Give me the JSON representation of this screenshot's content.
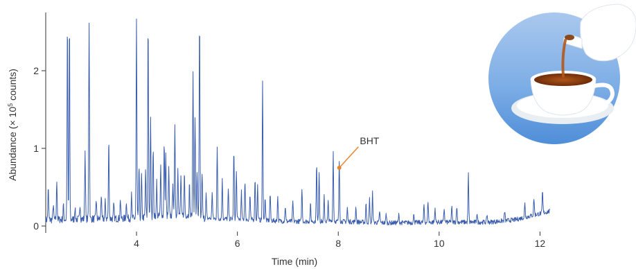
{
  "chart_data": {
    "type": "line",
    "xlabel": "Time (min)",
    "ylabel_prefix": "Abundance (× 10",
    "ylabel_exponent": "5",
    "ylabel_suffix": " counts)",
    "xlim": [
      2.2,
      12.2
    ],
    "ylim": [
      0,
      2.55
    ],
    "x_ticks": [
      4,
      6,
      8,
      10,
      12
    ],
    "y_ticks": [
      0,
      1,
      2
    ],
    "grid": false,
    "series_color": "#3a5dae",
    "baseline": [
      [
        2.2,
        0.08
      ],
      [
        3.0,
        0.09
      ],
      [
        4.0,
        0.1
      ],
      [
        4.5,
        0.13
      ],
      [
        5.0,
        0.14
      ],
      [
        5.3,
        0.1
      ],
      [
        6.0,
        0.09
      ],
      [
        7.0,
        0.06
      ],
      [
        8.0,
        0.06
      ],
      [
        9.0,
        0.04
      ],
      [
        10.0,
        0.05
      ],
      [
        11.0,
        0.05
      ],
      [
        11.5,
        0.08
      ],
      [
        12.0,
        0.16
      ],
      [
        12.2,
        0.19
      ]
    ],
    "peaks": [
      [
        2.25,
        0.4
      ],
      [
        2.35,
        0.2
      ],
      [
        2.42,
        0.5
      ],
      [
        2.55,
        0.18
      ],
      [
        2.63,
        2.55
      ],
      [
        2.67,
        2.55
      ],
      [
        2.78,
        0.15
      ],
      [
        2.88,
        0.2
      ],
      [
        2.98,
        0.88
      ],
      [
        3.06,
        2.55
      ],
      [
        3.2,
        0.25
      ],
      [
        3.3,
        0.3
      ],
      [
        3.38,
        0.22
      ],
      [
        3.45,
        1.02
      ],
      [
        3.55,
        0.18
      ],
      [
        3.68,
        0.26
      ],
      [
        3.8,
        0.22
      ],
      [
        3.9,
        0.3
      ],
      [
        4.0,
        2.55
      ],
      [
        4.05,
        0.65
      ],
      [
        4.1,
        0.55
      ],
      [
        4.18,
        0.62
      ],
      [
        4.23,
        2.55
      ],
      [
        4.28,
        1.25
      ],
      [
        4.33,
        0.9
      ],
      [
        4.4,
        0.45
      ],
      [
        4.48,
        0.65
      ],
      [
        4.55,
        0.95
      ],
      [
        4.58,
        0.82
      ],
      [
        4.64,
        0.6
      ],
      [
        4.72,
        0.45
      ],
      [
        4.76,
        1.2
      ],
      [
        4.82,
        0.65
      ],
      [
        4.88,
        0.5
      ],
      [
        4.95,
        0.55
      ],
      [
        5.05,
        0.4
      ],
      [
        5.12,
        1.85
      ],
      [
        5.16,
        1.3
      ],
      [
        5.2,
        0.6
      ],
      [
        5.25,
        2.55
      ],
      [
        5.3,
        0.6
      ],
      [
        5.38,
        0.3
      ],
      [
        5.5,
        0.35
      ],
      [
        5.6,
        0.9
      ],
      [
        5.7,
        0.5
      ],
      [
        5.82,
        0.38
      ],
      [
        5.93,
        0.88
      ],
      [
        5.98,
        0.6
      ],
      [
        6.08,
        0.35
      ],
      [
        6.15,
        0.5
      ],
      [
        6.25,
        0.32
      ],
      [
        6.35,
        0.55
      ],
      [
        6.4,
        0.45
      ],
      [
        6.5,
        1.78
      ],
      [
        6.55,
        0.3
      ],
      [
        6.65,
        0.35
      ],
      [
        6.8,
        0.32
      ],
      [
        6.95,
        0.2
      ],
      [
        7.1,
        0.25
      ],
      [
        7.28,
        0.42
      ],
      [
        7.45,
        0.22
      ],
      [
        7.57,
        0.75
      ],
      [
        7.62,
        0.65
      ],
      [
        7.72,
        0.32
      ],
      [
        7.8,
        0.25
      ],
      [
        7.9,
        0.9
      ],
      [
        8.02,
        0.78
      ],
      [
        8.18,
        0.18
      ],
      [
        8.35,
        0.2
      ],
      [
        8.55,
        0.25
      ],
      [
        8.62,
        0.3
      ],
      [
        8.68,
        0.38
      ],
      [
        8.82,
        0.15
      ],
      [
        8.95,
        0.12
      ],
      [
        9.2,
        0.1
      ],
      [
        9.5,
        0.12
      ],
      [
        9.7,
        0.22
      ],
      [
        9.78,
        0.28
      ],
      [
        9.92,
        0.18
      ],
      [
        10.1,
        0.18
      ],
      [
        10.25,
        0.2
      ],
      [
        10.35,
        0.22
      ],
      [
        10.58,
        0.62
      ],
      [
        10.75,
        0.12
      ],
      [
        10.95,
        0.1
      ],
      [
        11.3,
        0.12
      ],
      [
        11.7,
        0.18
      ],
      [
        11.88,
        0.22
      ],
      [
        12.05,
        0.28
      ]
    ],
    "annotations": [
      {
        "label": "BHT",
        "x": 8.02,
        "y": 0.75,
        "label_x": 8.4,
        "label_y": 1.02,
        "color": "#e8842e"
      }
    ]
  },
  "decoration": {
    "icon": "tea-pouring-icon"
  }
}
